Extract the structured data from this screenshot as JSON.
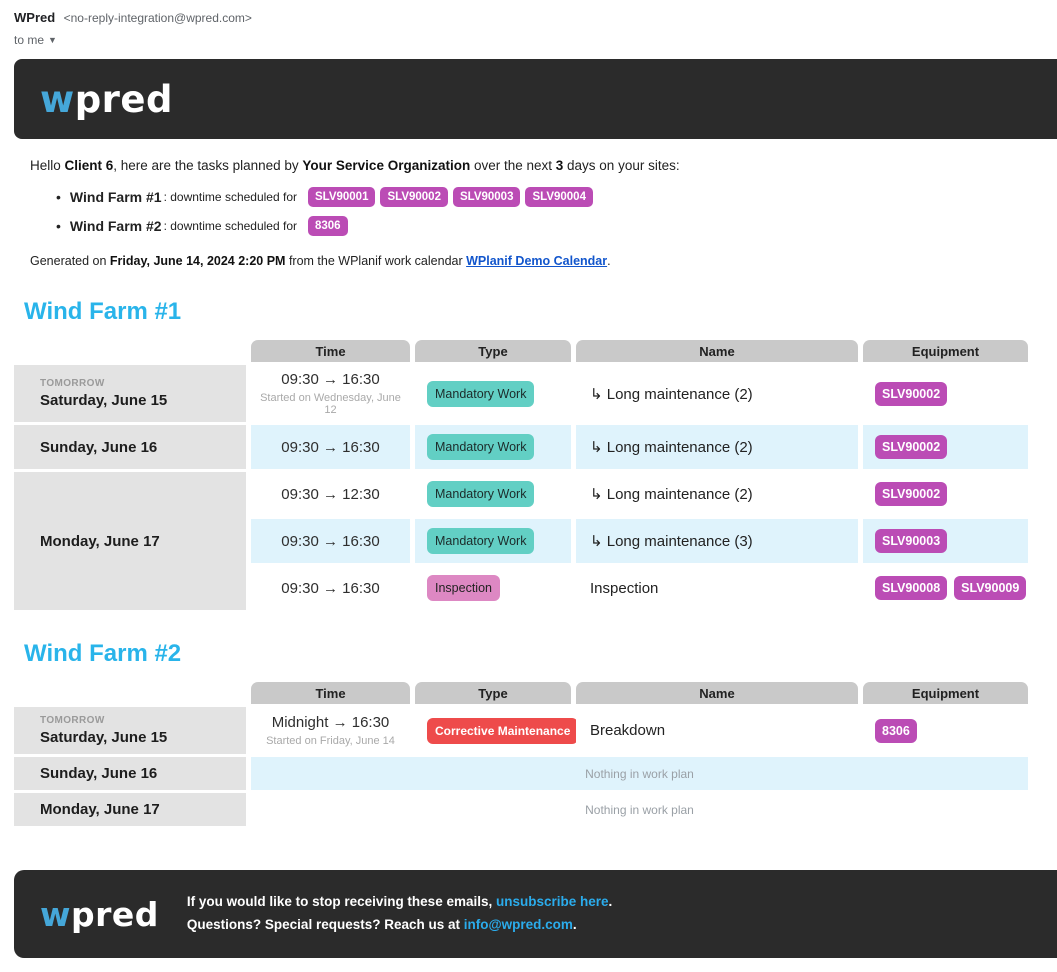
{
  "email_header": {
    "sender_name": "WPred",
    "sender_address": "<no-reply-integration@wpred.com>",
    "recipient": "to me"
  },
  "brand": {
    "logo_w": "w",
    "logo_rest": "pred"
  },
  "palette": {
    "header_bg": "#2b2b2b",
    "logo_blue": "#45a7d9",
    "accent_cyan": "#29b4ea",
    "equipment_purple": "#bb4cb5",
    "type_teal": "#62cfc4",
    "type_pink": "#dd88c3",
    "type_red": "#ee4b4b",
    "column_header_gray": "#c9c9c9",
    "day_cell_gray": "#e3e3e3",
    "row_blue": "#dff3fc",
    "calendar_link_blue": "#1155cc",
    "footer_link_blue": "#2bacec"
  },
  "intro": {
    "greeting_prefix": "Hello ",
    "client": "Client 6",
    "mid1": ", here are the tasks planned by ",
    "org": "Your Service Organization",
    "mid2": " over the next ",
    "days": "3",
    "suffix": " days on your sites:",
    "site_label": ": downtime scheduled for",
    "sites": [
      {
        "name": "Wind Farm #1",
        "badges": [
          "SLV90001",
          "SLV90002",
          "SLV90003",
          "SLV90004"
        ]
      },
      {
        "name": "Wind Farm #2",
        "badges": [
          "8306"
        ]
      }
    ],
    "generated_prefix": "Generated on ",
    "generated_date": "Friday, June 14, 2024 2:20 PM",
    "generated_mid": " from the WPlanif work calendar ",
    "calendar_link": "WPlanif Demo Calendar",
    "generated_suffix": "."
  },
  "sections": [
    {
      "title": "Wind Farm #1",
      "columns": [
        "Time",
        "Type",
        "Name",
        "Equipment"
      ],
      "days": [
        {
          "tag": "TOMORROW",
          "date": "Saturday, June 15",
          "rows": [
            {
              "time": "09:30 → 16:30",
              "time_note": "Started on Wednesday, June 12",
              "type": {
                "label": "Mandatory Work",
                "color": "teal"
              },
              "name": "↳ Long maintenance (2)",
              "equipment": [
                "SLV90002"
              ]
            }
          ]
        },
        {
          "date": "Sunday, June 16",
          "rows": [
            {
              "time": "09:30 → 16:30",
              "type": {
                "label": "Mandatory Work",
                "color": "teal"
              },
              "name": "↳ Long maintenance (2)",
              "equipment": [
                "SLV90002"
              ]
            }
          ]
        },
        {
          "date": "Monday, June 17",
          "rows": [
            {
              "time": "09:30 → 12:30",
              "type": {
                "label": "Mandatory Work",
                "color": "teal"
              },
              "name": "↳ Long maintenance (2)",
              "equipment": [
                "SLV90002"
              ]
            },
            {
              "time": "09:30 → 16:30",
              "type": {
                "label": "Mandatory Work",
                "color": "teal"
              },
              "name": "↳ Long maintenance (3)",
              "equipment": [
                "SLV90003"
              ]
            },
            {
              "time": "09:30 → 16:30",
              "type": {
                "label": "Inspection",
                "color": "pink"
              },
              "name": "Inspection",
              "equipment": [
                "SLV90008",
                "SLV90009"
              ]
            }
          ]
        }
      ]
    },
    {
      "title": "Wind Farm #2",
      "columns": [
        "Time",
        "Type",
        "Name",
        "Equipment"
      ],
      "days": [
        {
          "tag": "TOMORROW",
          "date": "Saturday, June 15",
          "rows": [
            {
              "time": "Midnight → 16:30",
              "time_note": "Started on Friday, June 14",
              "type": {
                "label": "Corrective Maintenance",
                "color": "red"
              },
              "name": "Breakdown",
              "equipment": [
                "8306"
              ]
            }
          ]
        },
        {
          "date": "Sunday, June 16",
          "rows": [],
          "empty": "Nothing in work plan"
        },
        {
          "date": "Monday, June 17",
          "rows": [],
          "empty": "Nothing in work plan"
        }
      ]
    }
  ],
  "footer": {
    "line1_prefix": "If you would like to stop receiving these emails, ",
    "unsubscribe_link": "unsubscribe here",
    "line1_suffix": ".",
    "line2_prefix": "Questions? Special requests? Reach us at ",
    "email_link": "info@wpred.com",
    "line2_suffix": "."
  }
}
